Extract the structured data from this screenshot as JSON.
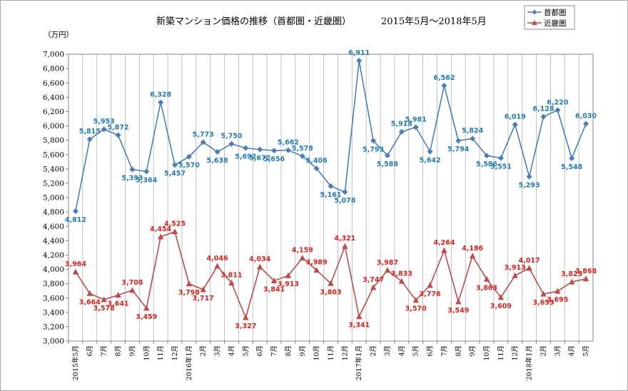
{
  "chart_data": {
    "type": "line",
    "title": "新築マンション価格の推移（首都圏・近畿圏）",
    "subtitle": "2015年5月～2018年5月",
    "ylabel": "（万円）",
    "ylim": [
      3000,
      7000
    ],
    "ystep": 200,
    "ytick_labels": [
      "3,000",
      "3,200",
      "3,400",
      "3,600",
      "3,800",
      "4,000",
      "4,200",
      "4,400",
      "4,600",
      "4,800",
      "5,000",
      "5,200",
      "5,400",
      "5,600",
      "5,800",
      "6,000",
      "6,200",
      "6,400",
      "6,600",
      "6,800",
      "7,000"
    ],
    "grid": "vertical",
    "legend_position": "top-right",
    "categories": [
      "2015年5月",
      "6月",
      "7月",
      "8月",
      "9月",
      "10月",
      "11月",
      "12月",
      "2016年1月",
      "2月",
      "3月",
      "4月",
      "5月",
      "6月",
      "7月",
      "8月",
      "9月",
      "10月",
      "11月",
      "12月",
      "2017年1月",
      "2月",
      "3月",
      "4月",
      "5月",
      "6月",
      "7月",
      "8月",
      "9月",
      "10月",
      "11月",
      "12月",
      "2018年1月",
      "2月",
      "3月",
      "4月",
      "5月"
    ],
    "series": [
      {
        "name": "首都圏",
        "color": "#4a7ebb",
        "label_color": "#1f7ab8",
        "marker": "diamond",
        "values": [
          4812,
          5815,
          5953,
          5872,
          5393,
          5364,
          6328,
          5457,
          5570,
          5773,
          5638,
          5750,
          5692,
          5672,
          5656,
          5662,
          5578,
          5406,
          5161,
          5078,
          6911,
          5793,
          5588,
          5918,
          5981,
          5642,
          6562,
          5794,
          5824,
          5586,
          5551,
          6019,
          5293,
          6128,
          6220,
          5548,
          6030
        ],
        "labels": [
          "4,812",
          "5,815",
          "5,953",
          "5,872",
          "5,393",
          "5,364",
          "6,328",
          "5,457",
          "5,570",
          "5,773",
          "5,638",
          "5,750",
          "5,692",
          "5,672",
          "5,656",
          "5,662",
          "5,578",
          "5,406",
          "5,161",
          "5,078",
          "6,911",
          "5,793",
          "5,588",
          "5,918",
          "5,981",
          "5,642",
          "6,562",
          "5,794",
          "5,824",
          "5,586",
          "5,551",
          "6,019",
          "5,293",
          "6,128",
          "6,220",
          "5,548",
          "6,030"
        ]
      },
      {
        "name": "近畿圏",
        "color": "#be4b48",
        "label_color": "#e0201a",
        "marker": "triangle",
        "values": [
          3964,
          3664,
          3578,
          3641,
          3708,
          3459,
          4454,
          4525,
          3798,
          3717,
          4046,
          3811,
          3327,
          4034,
          3841,
          3913,
          4159,
          3989,
          3803,
          4321,
          3341,
          3747,
          3987,
          3833,
          3570,
          3776,
          4264,
          3549,
          4186,
          3863,
          3609,
          3913,
          4017,
          3655,
          3695,
          3825,
          3868
        ],
        "labels": [
          "3,964",
          "3,664",
          "3,578",
          "3,641",
          "3,708",
          "3,459",
          "4,454",
          "4,525",
          "3,798",
          "3,717",
          "4,046",
          "3,811",
          "3,327",
          "4,034",
          "3,841",
          "3,913",
          "4,159",
          "3,989",
          "3,803",
          "4,321",
          "3,341",
          "3,747",
          "3,987",
          "3,833",
          "3,570",
          "3,776",
          "4,264",
          "3,549",
          "4,186",
          "3,863",
          "3,609",
          "3,913",
          "4,017",
          "3,655",
          "3,695",
          "3,825",
          "3,868"
        ]
      }
    ]
  }
}
